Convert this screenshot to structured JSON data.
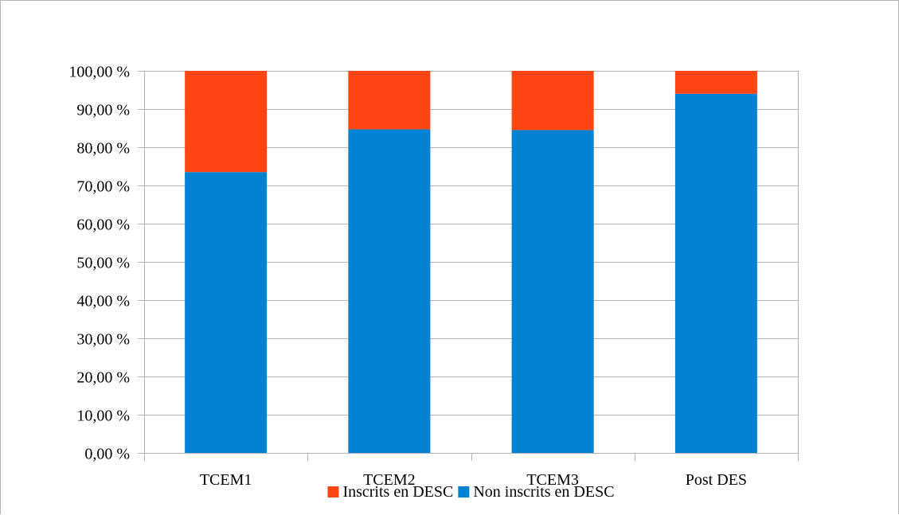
{
  "chart_data": {
    "type": "bar",
    "stacked": true,
    "categories": [
      "TCEM1",
      "TCEM2",
      "TCEM3",
      "Post DES"
    ],
    "series": [
      {
        "name": "Non inscrits en DESC",
        "color": "#0082d2",
        "values": [
          73.5,
          84.7,
          84.5,
          94.0
        ]
      },
      {
        "name": "Inscrits en DESC",
        "color": "#ff4512",
        "values": [
          26.5,
          15.3,
          15.5,
          6.0
        ]
      }
    ],
    "ylim": [
      0,
      100
    ],
    "yticks": [
      0,
      10,
      20,
      30,
      40,
      50,
      60,
      70,
      80,
      90,
      100
    ],
    "ytick_labels": [
      "0,00 %",
      "10,00 %",
      "20,00 %",
      "30,00 %",
      "40,00 %",
      "50,00 %",
      "60,00 %",
      "70,00 %",
      "80,00 %",
      "90,00 %",
      "100,00 %"
    ],
    "grid": true,
    "legend_position": "bottom",
    "legend_order": [
      "Inscrits en DESC",
      "Non inscrits en DESC"
    ],
    "title": "",
    "xlabel": "",
    "ylabel": ""
  }
}
